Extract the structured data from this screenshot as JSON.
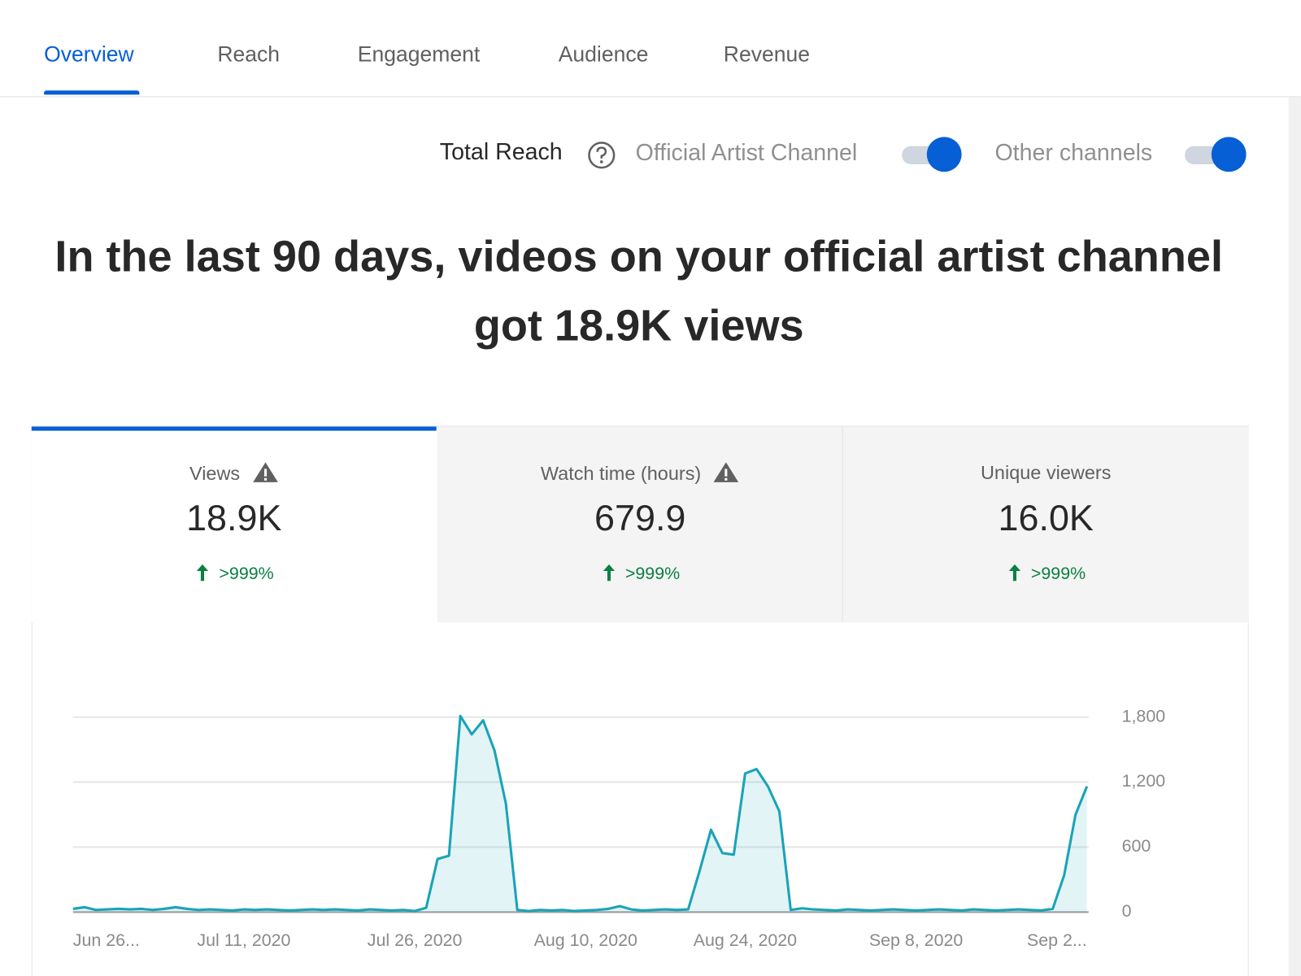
{
  "tabs": [
    "Overview",
    "Reach",
    "Engagement",
    "Audience",
    "Revenue"
  ],
  "reach": {
    "label": "Total Reach",
    "toggles": [
      "Official Artist Channel",
      "Other channels"
    ]
  },
  "headline": "In the last 90 days, videos on your official artist channel got 18.9K views",
  "metrics": [
    {
      "label": "Views",
      "value": "18.9K",
      "change": ">999%"
    },
    {
      "label": "Watch time (hours)",
      "value": "679.9",
      "change": ">999%"
    },
    {
      "label": "Unique viewers",
      "value": "16.0K",
      "change": ">999%"
    }
  ],
  "chart_data": {
    "type": "area",
    "categories": [
      "Jun 26...",
      null,
      null,
      null,
      null,
      null,
      null,
      null,
      null,
      null,
      null,
      null,
      null,
      null,
      null,
      "Jul 11, 2020",
      null,
      null,
      null,
      null,
      null,
      null,
      null,
      null,
      null,
      null,
      null,
      null,
      null,
      null,
      "Jul 26, 2020",
      null,
      null,
      null,
      null,
      null,
      null,
      null,
      null,
      null,
      null,
      null,
      null,
      null,
      null,
      "Aug 10, 2020",
      null,
      null,
      null,
      null,
      null,
      null,
      null,
      null,
      null,
      null,
      null,
      null,
      null,
      "Aug 24, 2020",
      null,
      null,
      null,
      null,
      null,
      null,
      null,
      null,
      null,
      null,
      null,
      null,
      null,
      null,
      "Sep 8, 2020",
      null,
      null,
      null,
      null,
      null,
      null,
      null,
      null,
      null,
      null,
      null,
      null,
      null,
      null,
      "Sep 2..."
    ],
    "series": [
      {
        "color": "#1aa3b8",
        "values": [
          30,
          45,
          20,
          25,
          30,
          25,
          30,
          20,
          30,
          45,
          30,
          20,
          25,
          20,
          15,
          25,
          20,
          25,
          20,
          15,
          20,
          25,
          20,
          25,
          20,
          15,
          25,
          20,
          15,
          20,
          10,
          40,
          490,
          520,
          1810,
          1640,
          1770,
          1490,
          1000,
          20,
          10,
          20,
          15,
          20,
          10,
          15,
          20,
          30,
          55,
          25,
          15,
          20,
          25,
          20,
          25,
          380,
          760,
          545,
          530,
          1280,
          1320,
          1160,
          930,
          20,
          35,
          25,
          20,
          15,
          25,
          20,
          15,
          20,
          25,
          20,
          15,
          20,
          25,
          20,
          15,
          25,
          20,
          15,
          20,
          25,
          20,
          15,
          30,
          340,
          900,
          1160
        ]
      }
    ],
    "ylim": [
      0,
      1800
    ],
    "yticks": [
      0,
      600,
      {
        "value": 1200,
        "label": "1,200"
      },
      {
        "value": 1800,
        "label": "1,800"
      }
    ],
    "grid": true
  }
}
